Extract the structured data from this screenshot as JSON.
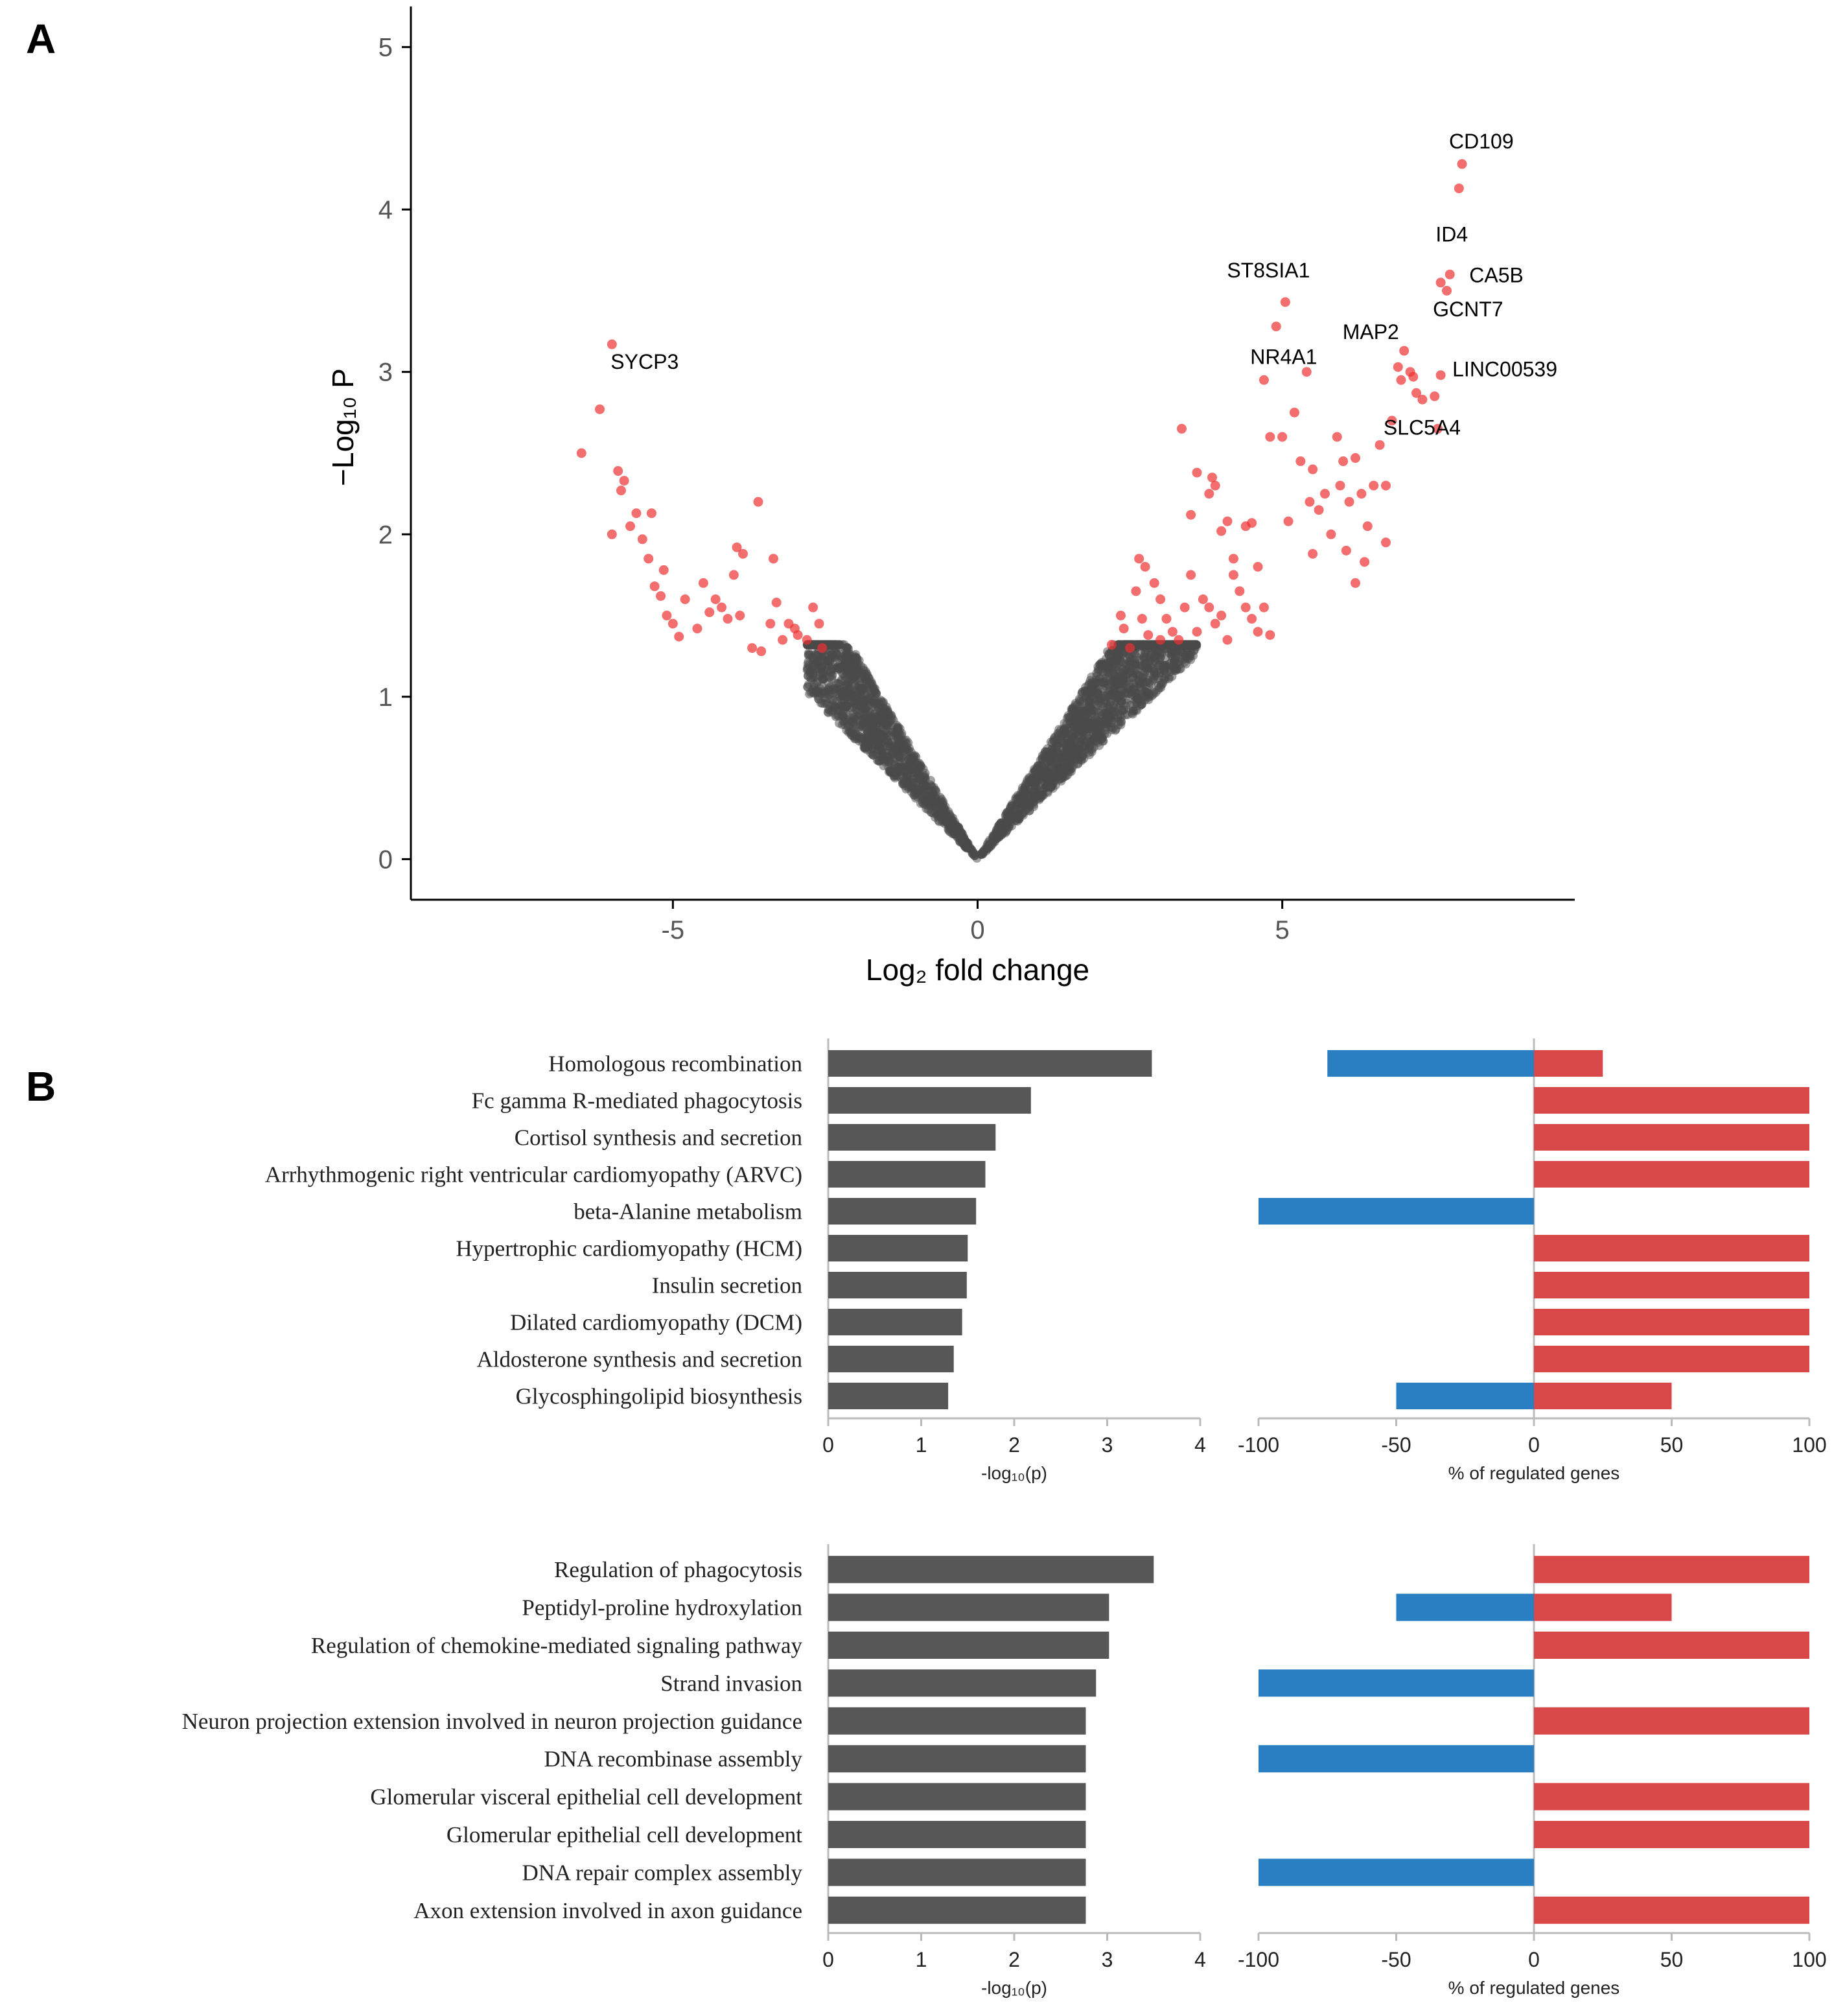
{
  "panel_labels": {
    "a": "A",
    "b": "B"
  },
  "colors": {
    "up": "#d94848",
    "down": "#2a7fc2",
    "bar": "#575757",
    "ns_point": "#4a4a4a",
    "sig_point": "#ee3030"
  },
  "chart_data": [
    {
      "type": "scatter",
      "id": "volcano",
      "title": "",
      "xlabel": "Log₂ fold change",
      "ylabel": "−Log₁₀ P",
      "xlim": [
        -9.3,
        9.8
      ],
      "ylim": [
        -0.25,
        5.25
      ],
      "x_ticks": [
        -5,
        0,
        5
      ],
      "y_ticks": [
        0,
        1,
        2,
        3,
        4,
        5
      ],
      "tick_labels_x": [
        "-5",
        "0",
        "5"
      ],
      "tick_labels_y": [
        "0",
        "1",
        "2",
        "3",
        "4",
        "5"
      ],
      "series": [
        {
          "name": "not significant",
          "description": "several thousand genes forming a V-shaped cloud near the origin, -log10 P below ~1.3"
        },
        {
          "name": "significant",
          "points": [
            [
              -6.5,
              2.5
            ],
            [
              -6.2,
              2.77
            ],
            [
              -6.0,
              3.17
            ],
            [
              -5.9,
              2.39
            ],
            [
              -5.8,
              2.33
            ],
            [
              -5.85,
              2.27
            ],
            [
              -5.6,
              2.13
            ],
            [
              -5.7,
              2.05
            ],
            [
              -5.5,
              1.97
            ],
            [
              -5.4,
              1.85
            ],
            [
              -5.3,
              1.68
            ],
            [
              -5.2,
              1.62
            ],
            [
              -5.1,
              1.5
            ],
            [
              -5.0,
              1.45
            ],
            [
              -4.9,
              1.37
            ],
            [
              -5.35,
              2.13
            ],
            [
              -6.0,
              2.0
            ],
            [
              -4.5,
              1.7
            ],
            [
              -4.3,
              1.6
            ],
            [
              -4.2,
              1.55
            ],
            [
              -4.0,
              1.75
            ],
            [
              -4.1,
              1.48
            ],
            [
              -3.9,
              1.5
            ],
            [
              -3.85,
              1.88
            ],
            [
              -3.7,
              1.3
            ],
            [
              -3.6,
              2.2
            ],
            [
              -3.4,
              1.45
            ],
            [
              -3.35,
              1.85
            ],
            [
              -3.3,
              1.58
            ],
            [
              -3.2,
              1.35
            ],
            [
              -3.1,
              1.45
            ],
            [
              -3.0,
              1.42
            ],
            [
              -2.95,
              1.38
            ],
            [
              -2.8,
              1.35
            ],
            [
              -2.7,
              1.55
            ],
            [
              -2.6,
              1.45
            ],
            [
              -2.55,
              1.3
            ],
            [
              -4.6,
              1.42
            ],
            [
              -4.4,
              1.52
            ],
            [
              -3.55,
              1.28
            ],
            [
              -4.8,
              1.6
            ],
            [
              -5.15,
              1.78
            ],
            [
              -3.95,
              1.92
            ],
            [
              2.2,
              1.32
            ],
            [
              2.4,
              1.42
            ],
            [
              2.5,
              1.3
            ],
            [
              2.35,
              1.5
            ],
            [
              2.6,
              1.65
            ],
            [
              2.7,
              1.48
            ],
            [
              2.8,
              1.38
            ],
            [
              2.9,
              1.7
            ],
            [
              3.0,
              1.6
            ],
            [
              3.0,
              1.35
            ],
            [
              3.1,
              1.48
            ],
            [
              3.2,
              1.4
            ],
            [
              3.3,
              1.35
            ],
            [
              3.4,
              1.55
            ],
            [
              3.5,
              1.75
            ],
            [
              3.6,
              1.4
            ],
            [
              3.7,
              1.6
            ],
            [
              3.8,
              1.55
            ],
            [
              3.9,
              1.45
            ],
            [
              4.0,
              1.5
            ],
            [
              4.1,
              1.35
            ],
            [
              4.2,
              1.85
            ],
            [
              4.3,
              1.65
            ],
            [
              4.4,
              1.55
            ],
            [
              4.5,
              1.48
            ],
            [
              4.6,
              1.4
            ],
            [
              4.7,
              1.55
            ],
            [
              4.8,
              1.38
            ],
            [
              2.65,
              1.85
            ],
            [
              2.75,
              1.8
            ],
            [
              3.35,
              2.65
            ],
            [
              3.5,
              2.12
            ],
            [
              3.6,
              2.38
            ],
            [
              3.8,
              2.25
            ],
            [
              3.85,
              2.35
            ],
            [
              3.9,
              2.3
            ],
            [
              4.0,
              2.02
            ],
            [
              4.1,
              2.08
            ],
            [
              4.2,
              1.75
            ],
            [
              4.4,
              2.05
            ],
            [
              4.5,
              2.07
            ],
            [
              4.6,
              1.8
            ],
            [
              4.7,
              2.95
            ],
            [
              4.8,
              2.6
            ],
            [
              4.9,
              3.28
            ],
            [
              5.0,
              2.6
            ],
            [
              5.05,
              3.43
            ],
            [
              5.1,
              2.08
            ],
            [
              5.2,
              2.75
            ],
            [
              5.3,
              2.45
            ],
            [
              5.4,
              3.0
            ],
            [
              5.45,
              2.2
            ],
            [
              5.5,
              2.4
            ],
            [
              5.6,
              2.15
            ],
            [
              5.7,
              2.25
            ],
            [
              5.8,
              2.0
            ],
            [
              5.9,
              2.6
            ],
            [
              5.95,
              2.3
            ],
            [
              6.0,
              2.45
            ],
            [
              6.1,
              2.2
            ],
            [
              6.2,
              2.47
            ],
            [
              6.3,
              2.25
            ],
            [
              6.4,
              2.05
            ],
            [
              6.5,
              2.3
            ],
            [
              6.6,
              2.55
            ],
            [
              6.7,
              2.3
            ],
            [
              6.8,
              2.7
            ],
            [
              7.0,
              3.13
            ],
            [
              7.1,
              3.0
            ],
            [
              7.15,
              2.97
            ],
            [
              7.2,
              2.87
            ],
            [
              7.3,
              2.83
            ],
            [
              7.5,
              2.85
            ],
            [
              7.55,
              2.65
            ],
            [
              7.6,
              2.98
            ],
            [
              7.7,
              3.5
            ],
            [
              7.6,
              3.55
            ],
            [
              7.75,
              3.6
            ],
            [
              7.9,
              4.13
            ],
            [
              7.95,
              4.28
            ],
            [
              6.9,
              3.03
            ],
            [
              6.95,
              2.95
            ],
            [
              5.5,
              1.88
            ],
            [
              6.2,
              1.7
            ],
            [
              6.35,
              1.83
            ],
            [
              6.05,
              1.9
            ],
            [
              6.7,
              1.95
            ]
          ]
        }
      ],
      "annotations": [
        {
          "label": "CD109",
          "x": 7.95,
          "y": 4.28
        },
        {
          "label": "ID4",
          "x": 7.9,
          "y": 4.13
        },
        {
          "label": "CA5B",
          "x": 7.75,
          "y": 3.6
        },
        {
          "label": "GCNT7",
          "x": 7.6,
          "y": 3.55
        },
        {
          "label": "ST8SIA1",
          "x": 5.05,
          "y": 3.43
        },
        {
          "label": "NR4A1",
          "x": 4.9,
          "y": 3.28
        },
        {
          "label": "MAP2",
          "x": 7.0,
          "y": 3.13
        },
        {
          "label": "LINC00539",
          "x": 7.6,
          "y": 2.98
        },
        {
          "label": "SLC5A4",
          "x": 7.3,
          "y": 2.83
        },
        {
          "label": "SYCP3",
          "x": -6.0,
          "y": 3.17
        }
      ]
    },
    {
      "type": "bar",
      "id": "kegg-pvalue",
      "orientation": "horizontal",
      "categories": [
        "Homologous recombination",
        "Fc gamma R-mediated phagocytosis",
        "Cortisol synthesis and secretion",
        "Arrhythmogenic right ventricular cardiomyopathy (ARVC)",
        "beta-Alanine metabolism",
        "Hypertrophic cardiomyopathy (HCM)",
        "Insulin secretion",
        "Dilated cardiomyopathy (DCM)",
        "Aldosterone synthesis and secretion",
        "Glycosphingolipid biosynthesis"
      ],
      "values": [
        3.48,
        2.18,
        1.8,
        1.69,
        1.59,
        1.5,
        1.49,
        1.44,
        1.35,
        1.29
      ],
      "xlabel": "-log₁₀(p)",
      "xlim": [
        0,
        4
      ],
      "x_ticks": [
        0,
        1,
        2,
        3,
        4
      ],
      "tick_labels": [
        "0",
        "1",
        "2",
        "3",
        "4"
      ]
    },
    {
      "type": "bar",
      "id": "kegg-regulated",
      "orientation": "horizontal",
      "stacked": "diverging",
      "categories_ref": "kegg-pvalue",
      "series": [
        {
          "name": "down-regulated",
          "values": [
            -75,
            0,
            0,
            0,
            -100,
            0,
            0,
            0,
            0,
            -50
          ]
        },
        {
          "name": "up-regulated",
          "values": [
            25,
            100,
            100,
            100,
            0,
            100,
            100,
            100,
            100,
            50
          ]
        }
      ],
      "xlabel": "% of regulated genes",
      "xlim": [
        -100,
        100
      ],
      "x_ticks": [
        -100,
        -50,
        0,
        50,
        100
      ],
      "tick_labels": [
        "-100",
        "-50",
        "0",
        "50",
        "100"
      ]
    },
    {
      "type": "bar",
      "id": "go-pvalue",
      "orientation": "horizontal",
      "categories": [
        "Regulation of phagocytosis",
        "Peptidyl-proline hydroxylation",
        "Regulation of chemokine-mediated signaling pathway",
        "Strand invasion",
        "Neuron projection extension involved in neuron projection guidance",
        "DNA recombinase assembly",
        "Glomerular visceral epithelial cell development",
        "Glomerular epithelial cell development",
        "DNA repair complex assembly",
        "Axon extension involved in axon guidance"
      ],
      "values": [
        3.5,
        3.02,
        3.02,
        2.88,
        2.77,
        2.77,
        2.77,
        2.77,
        2.77,
        2.77
      ],
      "xlabel": "-log₁₀(p)",
      "xlim": [
        0,
        4
      ],
      "x_ticks": [
        0,
        1,
        2,
        3,
        4
      ],
      "tick_labels": [
        "0",
        "1",
        "2",
        "3",
        "4"
      ]
    },
    {
      "type": "bar",
      "id": "go-regulated",
      "orientation": "horizontal",
      "stacked": "diverging",
      "categories_ref": "go-pvalue",
      "series": [
        {
          "name": "down-regulated",
          "values": [
            0,
            -50,
            0,
            -100,
            0,
            -100,
            0,
            0,
            -100,
            0
          ]
        },
        {
          "name": "up-regulated",
          "values": [
            100,
            50,
            100,
            0,
            100,
            0,
            100,
            100,
            0,
            100
          ]
        }
      ],
      "xlabel": "% of regulated genes",
      "xlim": [
        -100,
        100
      ],
      "x_ticks": [
        -100,
        -50,
        0,
        50,
        100
      ],
      "tick_labels": [
        "-100",
        "-50",
        "0",
        "50",
        "100"
      ]
    }
  ]
}
